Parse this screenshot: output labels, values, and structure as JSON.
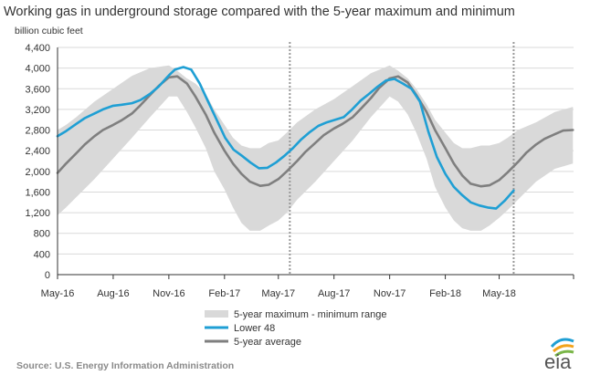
{
  "chart_data": {
    "type": "line",
    "title": "Working gas in underground storage compared with the 5-year maximum and minimum",
    "ylabel": "billion cubic feet",
    "xlabel": "",
    "ylim": [
      0,
      4400
    ],
    "y_ticks": [
      0,
      400,
      800,
      1200,
      1600,
      2000,
      2400,
      2800,
      3200,
      3600,
      4000,
      4400
    ],
    "y_tick_labels": [
      "0",
      "400",
      "800",
      "1,200",
      "1,600",
      "2,000",
      "2,400",
      "2,800",
      "3,200",
      "3,600",
      "4,000",
      "4,400"
    ],
    "xlim": [
      "2016-05-01",
      "2018-09-01"
    ],
    "x_ticks": [
      "2016-05-01",
      "2016-08-01",
      "2016-11-01",
      "2017-02-01",
      "2017-05-01",
      "2017-08-01",
      "2017-11-01",
      "2018-02-01",
      "2018-05-01"
    ],
    "x_tick_labels": [
      "May-16",
      "Aug-16",
      "Nov-16",
      "Feb-17",
      "May-17",
      "Aug-17",
      "Nov-17",
      "Feb-18",
      "May-18"
    ],
    "vertical_markers": [
      "2017-05-20",
      "2018-05-25"
    ],
    "grid": "horizontal",
    "legend": {
      "placement": "bottom-left",
      "items": [
        {
          "label": "5-year maximum - minimum range",
          "kind": "band",
          "color": "#d9d9d9"
        },
        {
          "label": "Lower 48",
          "kind": "line",
          "color": "#1f9fd4"
        },
        {
          "label": "5-year average",
          "kind": "line",
          "color": "#7f7f7f"
        }
      ]
    },
    "range_band": {
      "name": "5-year maximum - minimum range",
      "color": "#d9d9d9",
      "x": [
        "2016-05-01",
        "2016-05-15",
        "2016-06-01",
        "2016-07-01",
        "2016-08-01",
        "2016-09-01",
        "2016-10-01",
        "2016-11-01",
        "2016-11-15",
        "2016-12-01",
        "2016-12-15",
        "2017-01-01",
        "2017-01-15",
        "2017-02-01",
        "2017-02-15",
        "2017-03-01",
        "2017-03-15",
        "2017-04-01",
        "2017-04-15",
        "2017-05-01",
        "2017-05-15",
        "2017-06-01",
        "2017-07-01",
        "2017-08-01",
        "2017-09-01",
        "2017-10-01",
        "2017-11-01",
        "2017-11-15",
        "2017-12-01",
        "2017-12-15",
        "2018-01-01",
        "2018-01-15",
        "2018-02-01",
        "2018-02-15",
        "2018-03-01",
        "2018-03-15",
        "2018-04-01",
        "2018-04-15",
        "2018-05-01",
        "2018-05-15",
        "2018-06-01",
        "2018-07-01",
        "2018-08-01",
        "2018-08-31"
      ],
      "high": [
        2800,
        2900,
        3050,
        3350,
        3600,
        3850,
        4000,
        4050,
        3950,
        3800,
        3700,
        3500,
        3200,
        2900,
        2650,
        2500,
        2450,
        2450,
        2550,
        2600,
        2750,
        2950,
        3200,
        3400,
        3650,
        3900,
        4050,
        3950,
        3800,
        3600,
        3300,
        3000,
        2750,
        2550,
        2450,
        2450,
        2500,
        2500,
        2550,
        2650,
        2800,
        2950,
        3150,
        3250
      ],
      "low": [
        1150,
        1300,
        1500,
        1850,
        2250,
        2650,
        3050,
        3450,
        3450,
        3150,
        2850,
        2450,
        2000,
        1650,
        1300,
        1000,
        850,
        850,
        950,
        1050,
        1200,
        1450,
        1800,
        2200,
        2600,
        3050,
        3450,
        3350,
        3100,
        2750,
        2250,
        1700,
        1300,
        1050,
        900,
        850,
        850,
        950,
        1100,
        1250,
        1450,
        1800,
        2050,
        2150
      ]
    },
    "series": [
      {
        "name": "Lower 48",
        "color": "#1f9fd4",
        "x": [
          "2016-05-01",
          "2016-05-15",
          "2016-06-01",
          "2016-06-15",
          "2016-07-01",
          "2016-07-15",
          "2016-08-01",
          "2016-08-15",
          "2016-09-01",
          "2016-09-15",
          "2016-10-01",
          "2016-10-15",
          "2016-11-01",
          "2016-11-11",
          "2016-11-25",
          "2016-12-08",
          "2016-12-22",
          "2017-01-05",
          "2017-01-19",
          "2017-02-02",
          "2017-02-16",
          "2017-03-02",
          "2017-03-16",
          "2017-03-30",
          "2017-04-13",
          "2017-04-27",
          "2017-05-11",
          "2017-05-25",
          "2017-06-08",
          "2017-06-22",
          "2017-07-06",
          "2017-07-20",
          "2017-08-03",
          "2017-08-17",
          "2017-08-31",
          "2017-09-14",
          "2017-09-28",
          "2017-10-12",
          "2017-10-26",
          "2017-11-09",
          "2017-11-23",
          "2017-12-07",
          "2017-12-21",
          "2018-01-04",
          "2018-01-18",
          "2018-02-01",
          "2018-02-15",
          "2018-03-01",
          "2018-03-15",
          "2018-03-29",
          "2018-04-12",
          "2018-04-26",
          "2018-05-10",
          "2018-05-25"
        ],
        "values": [
          2680,
          2780,
          2920,
          3030,
          3120,
          3200,
          3270,
          3290,
          3320,
          3380,
          3500,
          3640,
          3860,
          3970,
          4020,
          3970,
          3700,
          3350,
          3000,
          2650,
          2420,
          2300,
          2170,
          2060,
          2070,
          2170,
          2300,
          2450,
          2620,
          2760,
          2880,
          2950,
          3000,
          3050,
          3200,
          3370,
          3500,
          3640,
          3760,
          3790,
          3700,
          3600,
          3350,
          2770,
          2280,
          1950,
          1700,
          1540,
          1400,
          1340,
          1300,
          1280,
          1430,
          1630
        ]
      },
      {
        "name": "5-year average",
        "color": "#7f7f7f",
        "x": [
          "2016-05-01",
          "2016-05-15",
          "2016-06-01",
          "2016-06-15",
          "2016-07-01",
          "2016-07-15",
          "2016-08-01",
          "2016-08-15",
          "2016-09-01",
          "2016-09-15",
          "2016-10-01",
          "2016-10-15",
          "2016-11-01",
          "2016-11-15",
          "2016-12-01",
          "2016-12-15",
          "2017-01-01",
          "2017-01-15",
          "2017-02-01",
          "2017-02-15",
          "2017-03-01",
          "2017-03-15",
          "2017-04-01",
          "2017-04-15",
          "2017-05-01",
          "2017-05-15",
          "2017-06-01",
          "2017-06-15",
          "2017-07-01",
          "2017-07-15",
          "2017-08-01",
          "2017-08-15",
          "2017-09-01",
          "2017-09-15",
          "2017-10-01",
          "2017-10-15",
          "2017-11-01",
          "2017-11-15",
          "2017-12-01",
          "2017-12-15",
          "2018-01-01",
          "2018-01-15",
          "2018-02-01",
          "2018-02-15",
          "2018-03-01",
          "2018-03-15",
          "2018-04-01",
          "2018-04-15",
          "2018-05-01",
          "2018-05-15",
          "2018-06-01",
          "2018-06-15",
          "2018-07-01",
          "2018-07-15",
          "2018-08-01",
          "2018-08-15",
          "2018-08-31"
        ],
        "values": [
          1970,
          2150,
          2350,
          2520,
          2680,
          2800,
          2900,
          2990,
          3120,
          3280,
          3480,
          3650,
          3820,
          3840,
          3700,
          3450,
          3100,
          2750,
          2400,
          2150,
          1950,
          1800,
          1720,
          1740,
          1850,
          2000,
          2200,
          2380,
          2550,
          2700,
          2830,
          2920,
          3050,
          3220,
          3420,
          3620,
          3800,
          3840,
          3720,
          3480,
          3150,
          2800,
          2450,
          2150,
          1920,
          1760,
          1710,
          1730,
          1830,
          1980,
          2180,
          2360,
          2520,
          2630,
          2720,
          2790,
          2800
        ]
      }
    ],
    "source": "Source:  U.S. Energy Information Administration",
    "logo": "eia"
  }
}
